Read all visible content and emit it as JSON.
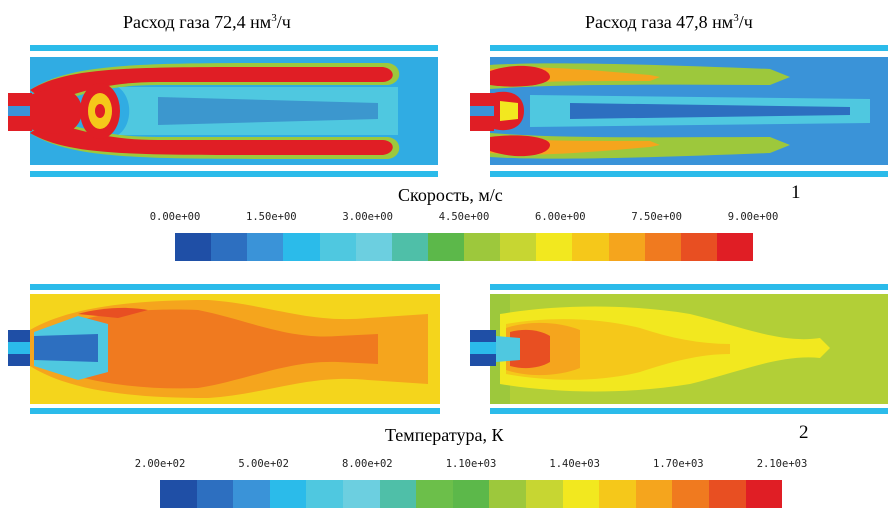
{
  "captions": {
    "left_prefix": "Расход газа 72,4 нм",
    "left_sup": "3",
    "left_suffix": "/ч",
    "right_prefix": "Расход газа 47,8 нм",
    "right_sup": "3",
    "right_suffix": "/ч"
  },
  "velocity": {
    "title": "Скорость, м/с",
    "label_number": "1",
    "ticks": [
      "0.00e+00",
      "1.50e+00",
      "3.00e+00",
      "4.50e+00",
      "6.00e+00",
      "7.50e+00",
      "9.00e+00"
    ],
    "colors": [
      "#1f4fa6",
      "#2d6fc0",
      "#3a93d8",
      "#2bbbea",
      "#4fc8e0",
      "#6ccfe0",
      "#4fbfa8",
      "#5cb84a",
      "#9dc83c",
      "#c7d632",
      "#f2e81f",
      "#f5c81a",
      "#f5a51d",
      "#f07a1f",
      "#e84f22",
      "#e01e25"
    ]
  },
  "temperature": {
    "title": "Температура, К",
    "label_number": "2",
    "ticks": [
      "2.00e+02",
      "5.00e+02",
      "8.00e+02",
      "1.10e+03",
      "1.40e+03",
      "1.70e+03",
      "2.10e+03"
    ],
    "colors": [
      "#1f4fa6",
      "#2d6fc0",
      "#3a93d8",
      "#2bbbea",
      "#4fc8e0",
      "#6ccfe0",
      "#4fbfa8",
      "#6cbf4a",
      "#5cb84a",
      "#9dc83c",
      "#c7d632",
      "#f2e81f",
      "#f5c81a",
      "#f5a51d",
      "#f07a1f",
      "#e84f22",
      "#e01e25"
    ]
  }
}
